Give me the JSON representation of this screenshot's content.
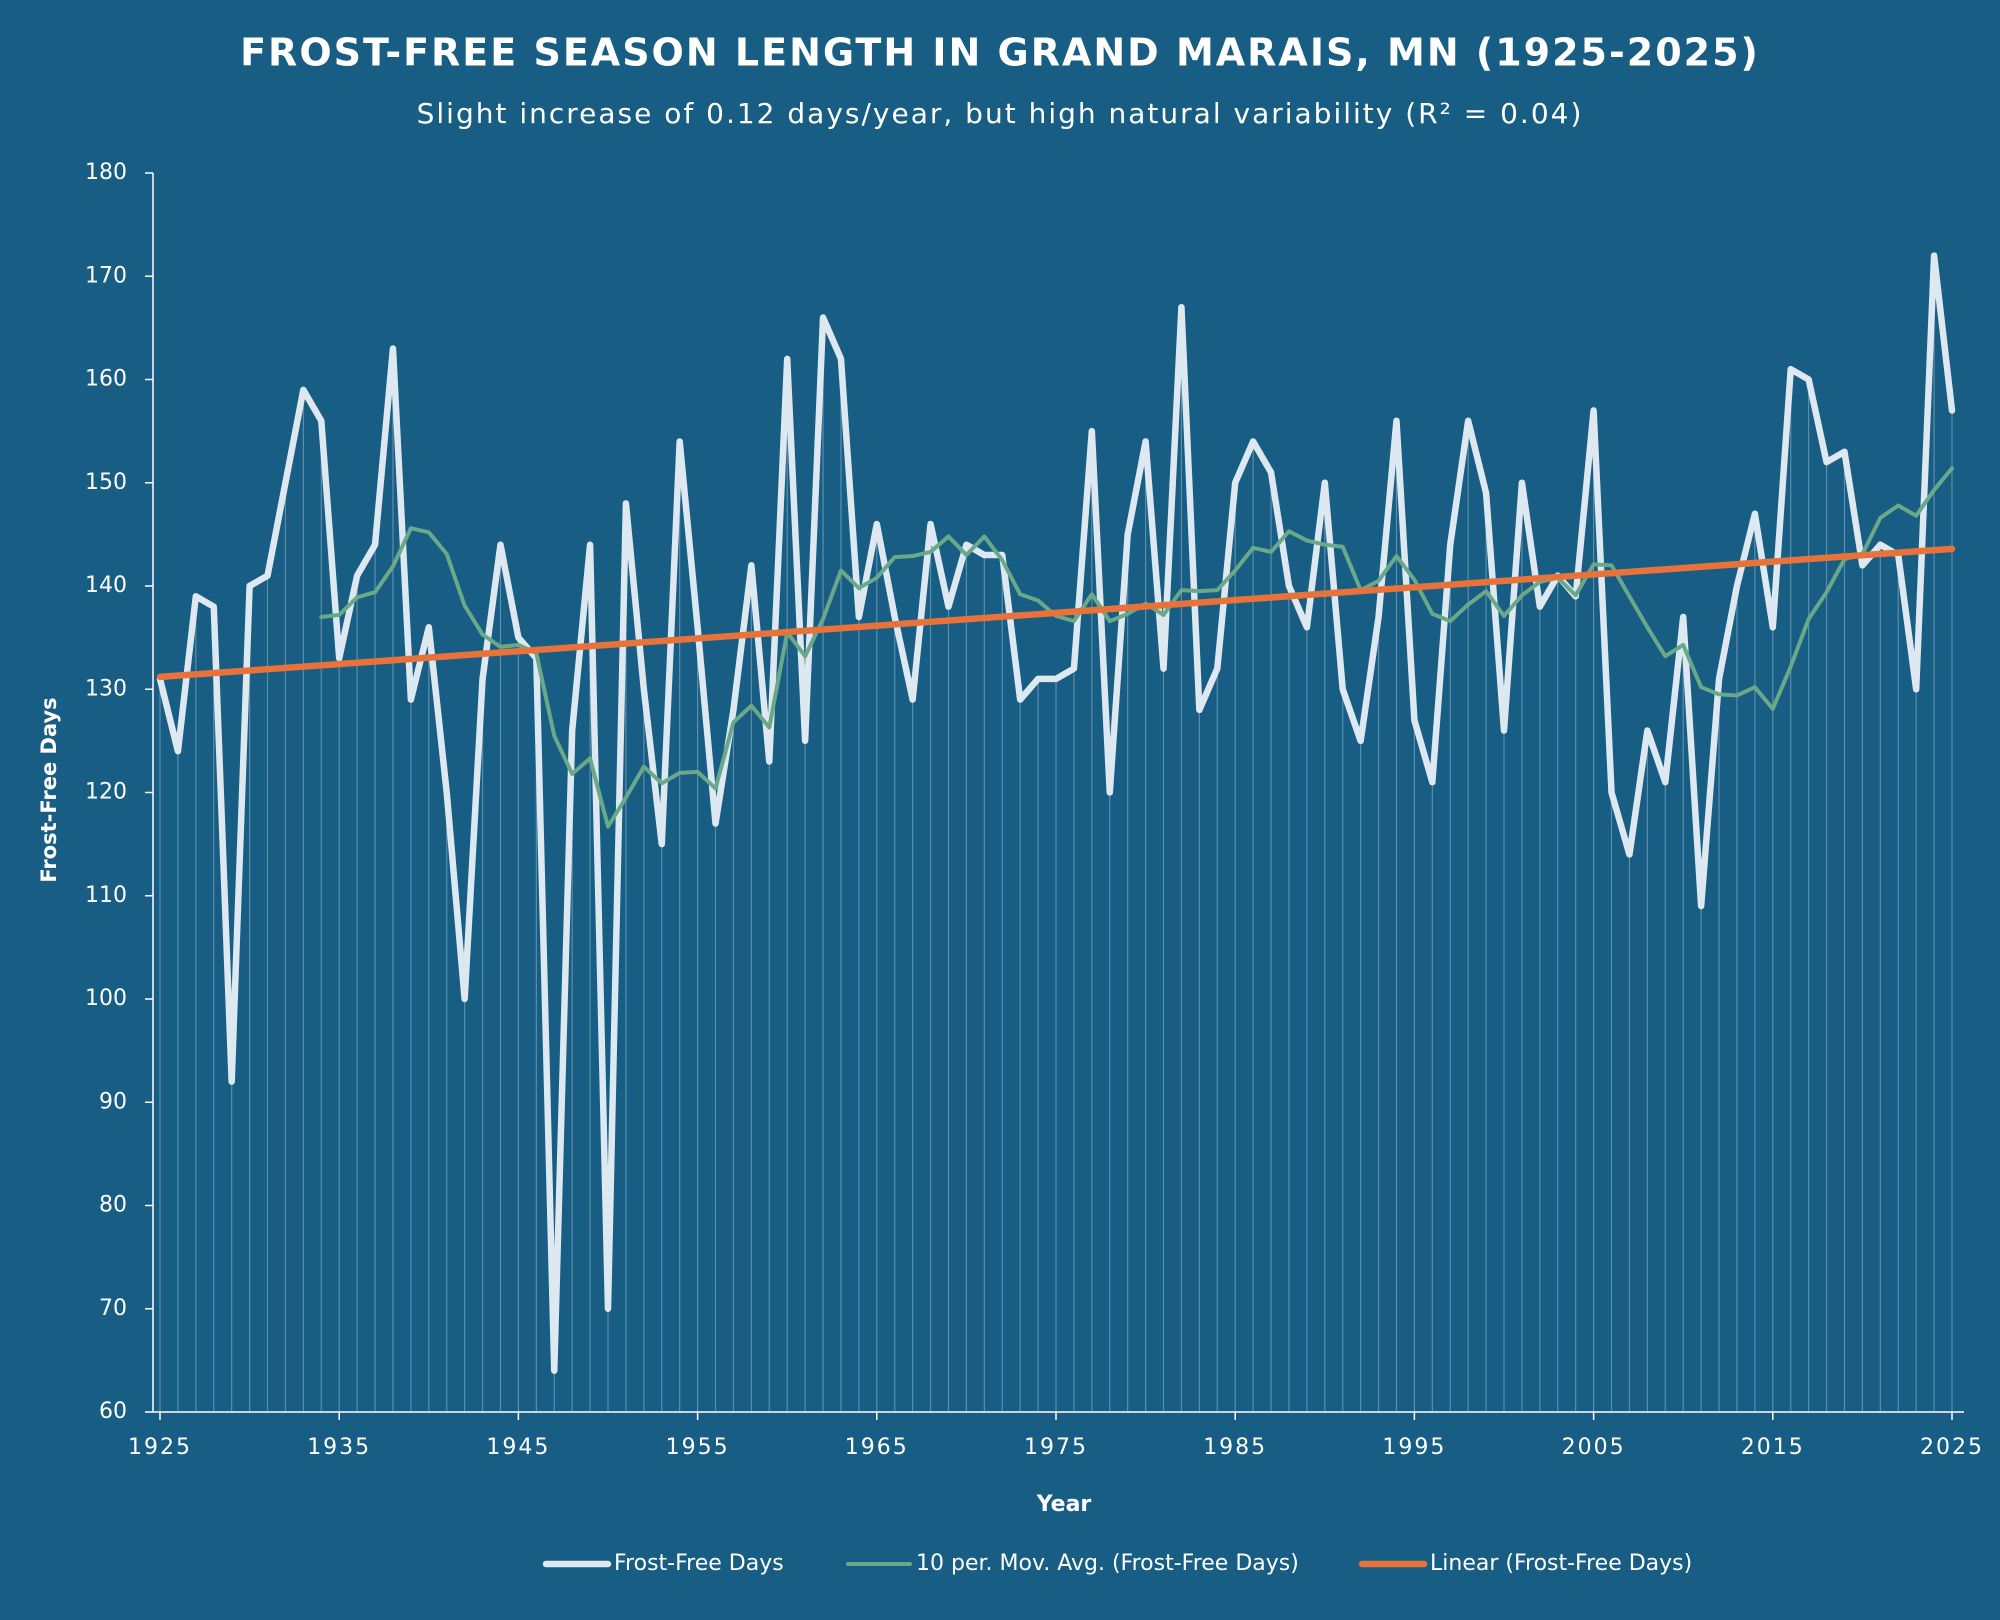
{
  "chart_data": {
    "type": "line",
    "title": "FROST-FREE SEASON LENGTH IN GRAND MARAIS, MN (1925-2025)",
    "subtitle": "Slight increase of 0.12 days/year, but high natural variability (R² = 0.04)",
    "x_label": "Year",
    "y_label": "Frost-Free Days",
    "x": [
      1925,
      1926,
      1927,
      1928,
      1929,
      1930,
      1931,
      1932,
      1933,
      1934,
      1935,
      1936,
      1937,
      1938,
      1939,
      1940,
      1941,
      1942,
      1943,
      1944,
      1945,
      1946,
      1947,
      1948,
      1949,
      1950,
      1951,
      1952,
      1953,
      1954,
      1955,
      1956,
      1957,
      1958,
      1959,
      1960,
      1961,
      1962,
      1963,
      1964,
      1965,
      1966,
      1967,
      1968,
      1969,
      1970,
      1971,
      1972,
      1973,
      1974,
      1975,
      1976,
      1977,
      1978,
      1979,
      1980,
      1981,
      1982,
      1983,
      1984,
      1985,
      1986,
      1987,
      1988,
      1989,
      1990,
      1991,
      1992,
      1993,
      1994,
      1995,
      1996,
      1997,
      1998,
      1999,
      2000,
      2001,
      2002,
      2003,
      2004,
      2005,
      2006,
      2007,
      2008,
      2009,
      2010,
      2011,
      2012,
      2013,
      2014,
      2015,
      2016,
      2017,
      2018,
      2019,
      2020,
      2021,
      2022,
      2023,
      2024,
      2025
    ],
    "series": [
      {
        "name": "Frost-Free Days",
        "color": "#dde8f0",
        "drop_lines": true,
        "values": [
          131,
          124,
          139,
          138,
          92,
          140,
          141,
          150,
          159,
          156,
          133,
          141,
          144,
          163,
          129,
          136,
          120,
          100,
          131,
          144,
          135,
          133,
          64,
          126,
          144,
          70,
          148,
          130,
          115,
          154,
          136,
          117,
          128,
          142,
          123,
          162,
          125,
          166,
          162,
          137,
          146,
          137,
          129,
          146,
          138,
          144,
          143,
          143,
          129,
          131,
          131,
          132,
          155,
          120,
          145,
          154,
          132,
          167,
          128,
          132,
          150,
          154,
          151,
          140,
          136,
          150,
          130,
          125,
          137,
          156,
          127,
          121,
          144,
          156,
          149,
          126,
          150,
          138,
          141,
          139,
          157,
          120,
          114,
          126,
          121,
          137,
          109,
          131,
          140,
          147,
          136,
          161,
          160,
          152,
          153,
          142,
          144,
          143,
          130,
          172,
          157
        ]
      },
      {
        "name": "10 per. Mov. Avg. (Frost-Free Days)",
        "color": "#6aa88a",
        "values": [
          null,
          null,
          null,
          null,
          null,
          null,
          null,
          null,
          null,
          137.0,
          137.2,
          138.9,
          139.4,
          141.9,
          145.6,
          145.2,
          143.1,
          138.1,
          135.3,
          134.1,
          134.3,
          133.5,
          125.5,
          121.8,
          123.3,
          116.7,
          119.5,
          122.5,
          120.9,
          121.9,
          122.0,
          120.4,
          126.8,
          128.4,
          126.3,
          135.5,
          133.2,
          136.8,
          141.5,
          139.8,
          140.8,
          142.8,
          142.9,
          143.3,
          144.8,
          143.0,
          144.8,
          142.5,
          139.2,
          138.6,
          137.1,
          136.6,
          139.2,
          136.6,
          137.3,
          138.3,
          137.2,
          139.6,
          139.5,
          139.6,
          141.5,
          143.7,
          143.3,
          145.3,
          144.4,
          144.0,
          143.8,
          139.6,
          140.5,
          142.9,
          140.6,
          137.3,
          136.6,
          138.2,
          139.5,
          137.1,
          139.1,
          140.4,
          140.8,
          139.1,
          142.1,
          142.0,
          139.0,
          136.0,
          133.2,
          134.3,
          130.2,
          129.5,
          129.4,
          130.2,
          128.1,
          132.2,
          136.8,
          139.4,
          142.6,
          143.1,
          146.6,
          147.8,
          146.8,
          149.3,
          151.4
        ]
      },
      {
        "name": "Linear (Frost-Free Days)",
        "color": "#e8733a",
        "x": [
          1925,
          2025
        ],
        "values": [
          131.2,
          143.6
        ]
      }
    ],
    "xlim": [
      1925,
      2025
    ],
    "xticks": [
      1925,
      1935,
      1945,
      1955,
      1965,
      1975,
      1985,
      1995,
      2005,
      2015,
      2025
    ],
    "ylim": [
      60,
      180
    ],
    "yticks": [
      60,
      70,
      80,
      90,
      100,
      110,
      120,
      130,
      140,
      150,
      160,
      170,
      180
    ],
    "grid": false,
    "legend": "bottom"
  }
}
